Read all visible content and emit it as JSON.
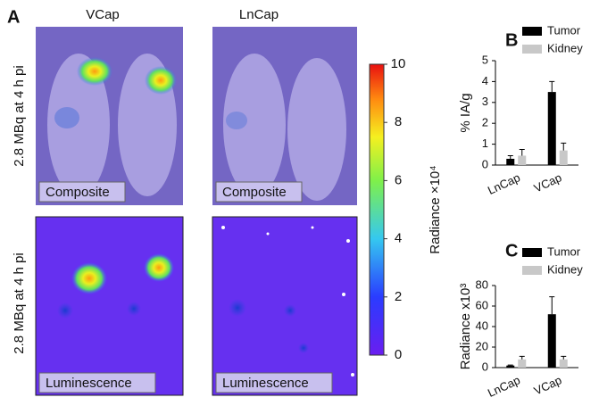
{
  "panel_a": {
    "label": "A",
    "columns": [
      "VCap",
      "LnCap"
    ],
    "row_labels": [
      "2.8 MBq at 4 h pi",
      "2.8 MBq at 4 h pi"
    ],
    "image_labels": [
      "Composite",
      "Composite",
      "Luminescence",
      "Luminescence"
    ]
  },
  "colorbar": {
    "label": "Radiance ×10⁴",
    "lim": [
      0,
      10
    ],
    "ticks": [
      0,
      2,
      4,
      6,
      8,
      10
    ]
  },
  "chart_data": [
    {
      "type": "bar",
      "panel": "B",
      "y_label": "% IA/g",
      "categories": [
        "LnCap",
        "VCap"
      ],
      "series": [
        {
          "name": "Tumor",
          "color": "#000000",
          "values": [
            0.3,
            3.5
          ],
          "errors": [
            0.15,
            0.5
          ]
        },
        {
          "name": "Kidney",
          "color": "#c8c8c8",
          "values": [
            0.45,
            0.7
          ],
          "errors": [
            0.3,
            0.35
          ]
        }
      ],
      "ylim": [
        0,
        5
      ],
      "yticks": [
        0,
        1,
        2,
        3,
        4,
        5
      ]
    },
    {
      "type": "bar",
      "panel": "C",
      "y_label": "Radiance x10³",
      "categories": [
        "LnCap",
        "VCap"
      ],
      "series": [
        {
          "name": "Tumor",
          "color": "#000000",
          "values": [
            2,
            52
          ],
          "errors": [
            0.5,
            17
          ]
        },
        {
          "name": "Kidney",
          "color": "#c8c8c8",
          "values": [
            8,
            8
          ],
          "errors": [
            3,
            3
          ]
        }
      ],
      "ylim": [
        0,
        80
      ],
      "yticks": [
        0,
        20,
        40,
        60,
        80
      ]
    }
  ]
}
